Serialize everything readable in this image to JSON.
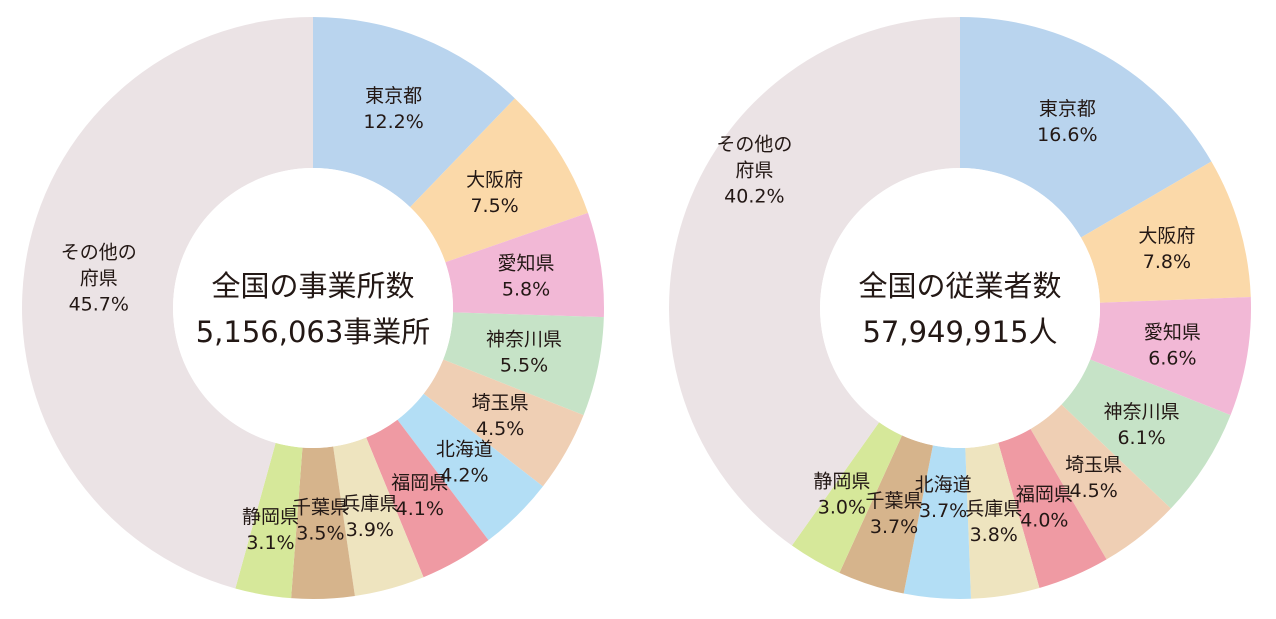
{
  "chart_data": [
    {
      "type": "pie",
      "center_label": "全国の事業所数",
      "center_value": "5,156,063事業所",
      "slices": [
        {
          "name": "東京都",
          "value": 12.2,
          "label": "12.2%",
          "color": "#b9d4ee"
        },
        {
          "name": "大阪府",
          "value": 7.5,
          "label": "7.5%",
          "color": "#fbd9a9"
        },
        {
          "name": "愛知県",
          "value": 5.8,
          "label": "5.8%",
          "color": "#f2b8d6"
        },
        {
          "name": "神奈川県",
          "value": 5.5,
          "label": "5.5%",
          "color": "#c6e3c7"
        },
        {
          "name": "埼玉県",
          "value": 4.5,
          "label": "4.5%",
          "color": "#efcfb4"
        },
        {
          "name": "北海道",
          "value": 4.2,
          "label": "4.2%",
          "color": "#b3def5"
        },
        {
          "name": "福岡県",
          "value": 4.1,
          "label": "4.1%",
          "color": "#ef9aa3"
        },
        {
          "name": "兵庫県",
          "value": 3.9,
          "label": "3.9%",
          "color": "#eee4bf"
        },
        {
          "name": "千葉県",
          "value": 3.5,
          "label": "3.5%",
          "color": "#d6b48c"
        },
        {
          "name": "静岡県",
          "value": 3.1,
          "label": "3.1%",
          "color": "#d6e89a"
        },
        {
          "name": "その他の府県",
          "value": 45.7,
          "label": "45.7%",
          "color": "#ebe3e5"
        }
      ]
    },
    {
      "type": "pie",
      "center_label": "全国の従業者数",
      "center_value": "57,949,915人",
      "slices": [
        {
          "name": "東京都",
          "value": 16.6,
          "label": "16.6%",
          "color": "#b9d4ee"
        },
        {
          "name": "大阪府",
          "value": 7.8,
          "label": "7.8%",
          "color": "#fbd9a9"
        },
        {
          "name": "愛知県",
          "value": 6.6,
          "label": "6.6%",
          "color": "#f2b8d6"
        },
        {
          "name": "神奈川県",
          "value": 6.1,
          "label": "6.1%",
          "color": "#c6e3c7"
        },
        {
          "name": "埼玉県",
          "value": 4.5,
          "label": "4.5%",
          "color": "#efcfb4"
        },
        {
          "name": "福岡県",
          "value": 4.0,
          "label": "4.0%",
          "color": "#ef9aa3"
        },
        {
          "name": "兵庫県",
          "value": 3.8,
          "label": "3.8%",
          "color": "#eee4bf"
        },
        {
          "name": "北海道",
          "value": 3.7,
          "label": "3.7%",
          "color": "#b3def5"
        },
        {
          "name": "千葉県",
          "value": 3.7,
          "label": "3.7%",
          "color": "#d6b48c"
        },
        {
          "name": "静岡県",
          "value": 3.0,
          "label": "3.0%",
          "color": "#d6e89a"
        },
        {
          "name": "その他の府県",
          "value": 40.2,
          "label": "40.2%",
          "color": "#ebe3e5"
        }
      ]
    }
  ]
}
